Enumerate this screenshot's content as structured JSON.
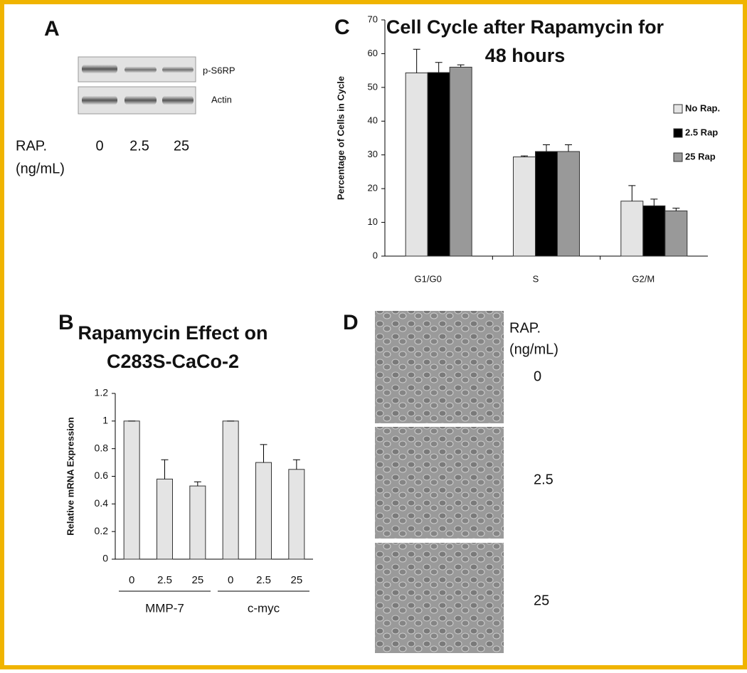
{
  "blot": {
    "label": "A",
    "bands": [
      "p-S6RP",
      "Actin"
    ],
    "axis_label": [
      "RAP.",
      "(ng/mL)"
    ],
    "doses": [
      "0",
      "2.5",
      "25"
    ]
  },
  "micrographs": {
    "label": "D",
    "axis_label": [
      "RAP.",
      "(ng/mL)"
    ],
    "doses": [
      "0",
      "2.5",
      "25"
    ]
  },
  "chart_data": [
    {
      "type": "bar",
      "label": "B",
      "title": [
        "Rapamycin Effect on",
        "C283S-CaCo-2"
      ],
      "y_label": "Relative mRNA Expression",
      "categories": [
        "0",
        "2.5",
        "25",
        "0",
        "2.5",
        "25"
      ],
      "groups": [
        {
          "label": "MMP-7",
          "size": 3
        },
        {
          "label": "c-myc",
          "size": 3
        }
      ],
      "values": [
        1,
        0.58,
        0.53,
        1,
        0.7,
        0.65
      ],
      "errors": [
        0,
        0.14,
        0.03,
        0,
        0.13,
        0.07
      ],
      "color": "#e4e4e4",
      "ylim": [
        0,
        1.2
      ],
      "yticks": [
        0,
        0.2,
        0.4,
        0.6,
        0.8,
        1,
        1.2
      ]
    },
    {
      "type": "grouped_bar",
      "label": "C",
      "title": [
        "Cell Cycle after Rapamycin for",
        "48 hours"
      ],
      "y_label": "Percentage of Cells in Cycle",
      "categories": [
        "G1/G0",
        "S",
        "G2/M"
      ],
      "series": [
        {
          "name": "No Rap.",
          "color": "#e4e4e4",
          "values": [
            54.3,
            29.4,
            16.3
          ],
          "errors": [
            7,
            0.3,
            4.6
          ]
        },
        {
          "name": "2.5 Rap",
          "color": "#000000",
          "values": [
            54.4,
            31,
            14.9
          ],
          "errors": [
            3,
            2,
            2
          ]
        },
        {
          "name": "25 Rap",
          "color": "#999999",
          "values": [
            56,
            31,
            13.4
          ],
          "errors": [
            0.7,
            2,
            0.8
          ]
        }
      ],
      "ylim": [
        0,
        70
      ],
      "yticks": [
        0,
        10,
        20,
        30,
        40,
        50,
        60,
        70
      ],
      "legend": "right"
    }
  ]
}
